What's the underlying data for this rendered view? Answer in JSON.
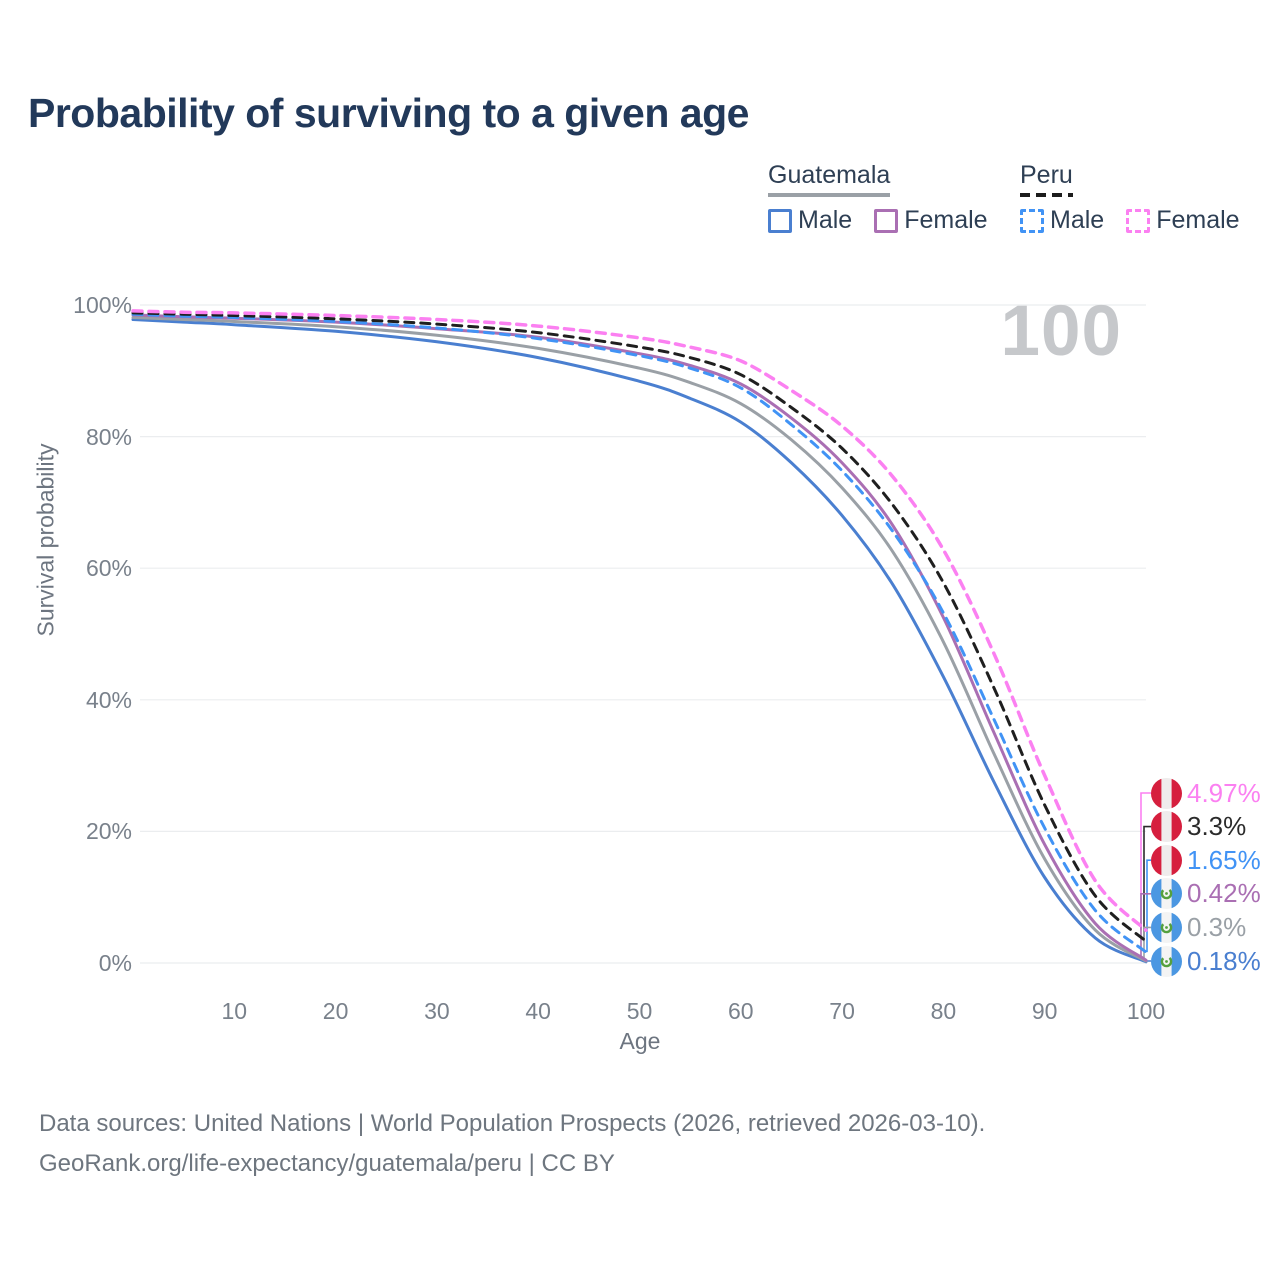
{
  "title": "Probability of surviving to a given age",
  "age_counter": "100",
  "colors": {
    "guatemala_male": "#4a7fd0",
    "guatemala_all": "#9aa0a6",
    "guatemala_female": "#aa6fb3",
    "peru_male": "#4193f5",
    "peru_all": "#1f1f1f",
    "peru_female": "#fb80f1",
    "grid": "#ebedef",
    "title_text": "#22395a",
    "counter_text": "#c6c8cb"
  },
  "legend": {
    "groups": [
      {
        "label": "Guatemala",
        "underline_style": "solid",
        "underline_color": "#9aa0a6",
        "items": [
          {
            "label": "Male",
            "color": "#4a7fd0",
            "dashed": false
          },
          {
            "label": "Female",
            "color": "#aa6fb3",
            "dashed": false
          }
        ]
      },
      {
        "label": "Peru",
        "underline_style": "dashed",
        "underline_color": "#1c1c1c",
        "items": [
          {
            "label": "Male",
            "color": "#4193f5",
            "dashed": true
          },
          {
            "label": "Female",
            "color": "#fb80f1",
            "dashed": true
          }
        ]
      }
    ]
  },
  "chart_data": {
    "type": "line",
    "title": "Probability of surviving to a given age",
    "xlabel": "Age",
    "ylabel": "Survival probability",
    "xlim": [
      0,
      100
    ],
    "ylim": [
      0,
      100
    ],
    "x_ticks": [
      10,
      20,
      30,
      40,
      50,
      60,
      70,
      80,
      90,
      100
    ],
    "y_ticks": [
      0,
      20,
      40,
      60,
      80,
      100
    ],
    "y_tick_suffix": "%",
    "grid": "horizontal-only",
    "legend_position": "top-right",
    "x": [
      0,
      5,
      10,
      20,
      30,
      40,
      50,
      55,
      60,
      65,
      70,
      75,
      80,
      85,
      90,
      95,
      100
    ],
    "series": [
      {
        "name": "Guatemala Male",
        "slug": "guatemala-male",
        "color": "#4a7fd0",
        "dashed": false,
        "width": 3,
        "values": [
          97.8,
          97.4,
          97.0,
          96.0,
          94.4,
          92.0,
          88.4,
          85.8,
          82.2,
          76.0,
          68.0,
          57.5,
          43.5,
          27.5,
          13.0,
          3.8,
          0.18
        ]
      },
      {
        "name": "Guatemala",
        "slug": "guatemala-all",
        "color": "#9aa0a6",
        "dashed": false,
        "width": 3,
        "values": [
          98.1,
          97.8,
          97.5,
          96.7,
          95.4,
          93.4,
          90.4,
          88.2,
          85.0,
          79.5,
          72.2,
          62.5,
          48.8,
          31.8,
          15.8,
          5.0,
          0.3
        ]
      },
      {
        "name": "Guatemala Female",
        "slug": "guatemala-female",
        "color": "#aa6fb3",
        "dashed": false,
        "width": 3,
        "values": [
          98.5,
          98.2,
          98.0,
          97.4,
          96.4,
          95.1,
          92.6,
          90.8,
          88.0,
          82.8,
          76.0,
          66.5,
          52.5,
          35.0,
          18.0,
          6.0,
          0.42
        ]
      },
      {
        "name": "Peru Male",
        "slug": "peru-male",
        "color": "#4193f5",
        "dashed": true,
        "width": 3,
        "values": [
          98.6,
          98.3,
          98.1,
          97.5,
          96.5,
          94.9,
          92.3,
          90.4,
          87.4,
          81.8,
          74.8,
          65.6,
          53.2,
          37.0,
          20.5,
          8.0,
          1.65
        ]
      },
      {
        "name": "Peru",
        "slug": "peru-all",
        "color": "#1f1f1f",
        "dashed": true,
        "width": 3,
        "values": [
          98.8,
          98.6,
          98.4,
          97.9,
          97.1,
          95.8,
          93.6,
          92.0,
          89.4,
          84.4,
          78.2,
          69.6,
          57.8,
          41.8,
          24.0,
          10.2,
          3.3
        ]
      },
      {
        "name": "Peru Female",
        "slug": "peru-female",
        "color": "#fb80f1",
        "dashed": true,
        "width": 3.5,
        "values": [
          99.1,
          98.9,
          98.8,
          98.4,
          97.8,
          96.8,
          95.0,
          93.6,
          91.5,
          87.0,
          81.6,
          73.9,
          62.8,
          47.0,
          28.5,
          12.5,
          4.97
        ]
      }
    ]
  },
  "end_labels": [
    {
      "value": "4.97%",
      "pct": 4.97,
      "color": "#fb80f1",
      "flag": "peru"
    },
    {
      "value": "3.3%",
      "pct": 3.3,
      "color": "#2b2b2b",
      "flag": "peru"
    },
    {
      "value": "1.65%",
      "pct": 1.65,
      "color": "#4193f5",
      "flag": "peru"
    },
    {
      "value": "0.42%",
      "pct": 0.42,
      "color": "#aa6fb3",
      "flag": "guatemala"
    },
    {
      "value": "0.3%",
      "pct": 0.3,
      "color": "#9aa0a6",
      "flag": "guatemala"
    },
    {
      "value": "0.18%",
      "pct": 0.18,
      "color": "#4a7fd0",
      "flag": "guatemala"
    }
  ],
  "footer": {
    "line1": "Data sources: United Nations | World Population Prospects (2026, retrieved 2026-03-10).",
    "line2": "GeoRank.org/life-expectancy/guatemala/peru | CC BY"
  }
}
